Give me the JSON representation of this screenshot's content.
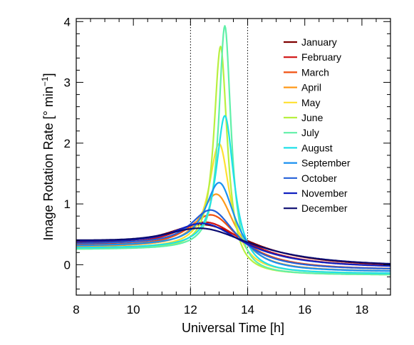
{
  "chart_data": {
    "type": "line",
    "xlabel": "Universal Time [h]",
    "ylabel_main": "Image Rotation Rate [° min",
    "ylabel_sup": "−1",
    "ylabel_end": "]",
    "xlim": [
      8,
      19
    ],
    "ylim": [
      -0.5,
      4.05
    ],
    "x_ticks": [
      8,
      10,
      12,
      14,
      16,
      18
    ],
    "y_ticks": [
      0,
      1,
      2,
      3,
      4
    ],
    "x_tick_labels": [
      "8",
      "10",
      "12",
      "14",
      "16",
      "18"
    ],
    "y_tick_labels": [
      "0",
      "1",
      "2",
      "3",
      "4"
    ],
    "grid": false,
    "legend_position": "top-right",
    "reference_lines": [
      12,
      14
    ],
    "series": [
      {
        "name": "January",
        "color": "#7f0000",
        "peak_x": 12.4,
        "peak": 0.66,
        "baseline_left": 0.34,
        "baseline_right": -0.05,
        "width": 1.8
      },
      {
        "name": "February",
        "color": "#d01010",
        "peak_x": 12.5,
        "peak": 0.7,
        "baseline_left": 0.32,
        "baseline_right": -0.06,
        "width": 1.5
      },
      {
        "name": "March",
        "color": "#f05010",
        "peak_x": 12.7,
        "peak": 0.82,
        "baseline_left": 0.3,
        "baseline_right": -0.09,
        "width": 1.1
      },
      {
        "name": "April",
        "color": "#ff9a1a",
        "peak_x": 12.9,
        "peak": 1.16,
        "baseline_left": 0.28,
        "baseline_right": -0.12,
        "width": 0.75
      },
      {
        "name": "May",
        "color": "#ffe030",
        "peak_x": 13.0,
        "peak": 1.99,
        "baseline_left": 0.26,
        "baseline_right": -0.15,
        "width": 0.45
      },
      {
        "name": "June",
        "color": "#b8f040",
        "peak_x": 13.05,
        "peak": 3.59,
        "baseline_left": 0.25,
        "baseline_right": -0.17,
        "width": 0.28
      },
      {
        "name": "July",
        "color": "#60f0a8",
        "peak_x": 13.2,
        "peak": 3.93,
        "baseline_left": 0.25,
        "baseline_right": -0.17,
        "width": 0.26
      },
      {
        "name": "August",
        "color": "#20e0e8",
        "peak_x": 13.2,
        "peak": 2.45,
        "baseline_left": 0.27,
        "baseline_right": -0.15,
        "width": 0.38
      },
      {
        "name": "September",
        "color": "#1a90f0",
        "peak_x": 13.0,
        "peak": 1.35,
        "baseline_left": 0.3,
        "baseline_right": -0.12,
        "width": 0.65
      },
      {
        "name": "October",
        "color": "#2460d8",
        "peak_x": 12.7,
        "peak": 0.9,
        "baseline_left": 0.33,
        "baseline_right": -0.09,
        "width": 1.0
      },
      {
        "name": "November",
        "color": "#1020c0",
        "peak_x": 12.4,
        "peak": 0.68,
        "baseline_left": 0.37,
        "baseline_right": -0.06,
        "width": 1.5
      },
      {
        "name": "December",
        "color": "#0a0a70",
        "peak_x": 12.3,
        "peak": 0.6,
        "baseline_left": 0.4,
        "baseline_right": -0.04,
        "width": 1.9
      }
    ]
  }
}
